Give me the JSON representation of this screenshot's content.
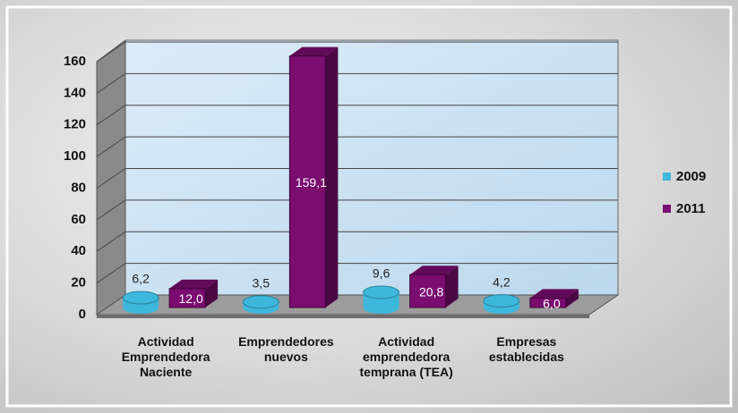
{
  "chart_data": {
    "type": "bar3d",
    "categories": [
      "Actividad Emprendedora Naciente",
      "Emprendedores nuevos",
      "Actividad emprendedora temprana (TEA)",
      "Empresas establecidas"
    ],
    "series": [
      {
        "name": "2009",
        "color": "#3db7dc",
        "values": [
          6.2,
          3.5,
          9.6,
          4.2
        ],
        "value_labels": [
          "6,2",
          "3,5",
          "9,6",
          "4,2"
        ]
      },
      {
        "name": "2011",
        "color": "#7b0c70",
        "values": [
          12.0,
          159.1,
          20.8,
          6.0
        ],
        "value_labels": [
          "12,0",
          "159,1",
          "20,8",
          "6,0"
        ]
      }
    ],
    "ylim": [
      0,
      160
    ],
    "yticks": [
      0,
      20,
      40,
      60,
      80,
      100,
      120,
      140,
      160
    ],
    "grid": true,
    "legend": "right"
  }
}
